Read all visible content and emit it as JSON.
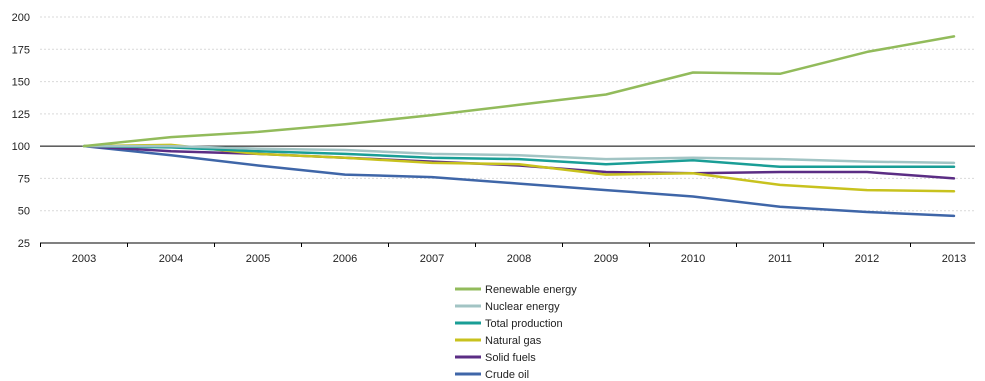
{
  "chart_data": {
    "type": "line",
    "x": [
      "2003",
      "2004",
      "2005",
      "2006",
      "2007",
      "2008",
      "2009",
      "2010",
      "2011",
      "2012",
      "2013"
    ],
    "ylim": [
      25,
      200
    ],
    "yticks": [
      "25",
      "50",
      "75",
      "100",
      "125",
      "150",
      "175",
      "200"
    ],
    "grid": true,
    "legend_position": "bottom-center",
    "series": [
      {
        "name": "Renewable energy",
        "color": "#92bb5b",
        "values": [
          100,
          107,
          111,
          117,
          124,
          132,
          140,
          157,
          156,
          173,
          185
        ]
      },
      {
        "name": "Nuclear energy",
        "color": "#a2c4c4",
        "values": [
          100,
          100,
          98,
          97,
          94,
          93,
          90,
          91,
          90,
          88,
          87
        ]
      },
      {
        "name": "Total production",
        "color": "#1a9e96",
        "values": [
          100,
          99,
          96,
          94,
          91,
          90,
          86,
          89,
          84,
          84,
          84
        ]
      },
      {
        "name": "Natural gas",
        "color": "#c8c21e",
        "values": [
          100,
          101,
          94,
          91,
          87,
          86,
          78,
          79,
          70,
          66,
          65
        ]
      },
      {
        "name": "Solid fuels",
        "color": "#5b2d84",
        "values": [
          100,
          96,
          94,
          91,
          88,
          85,
          80,
          79,
          80,
          80,
          75
        ]
      },
      {
        "name": "Crude oil",
        "color": "#3f66a8",
        "values": [
          100,
          93,
          85,
          78,
          76,
          71,
          66,
          61,
          53,
          49,
          46
        ]
      }
    ]
  }
}
